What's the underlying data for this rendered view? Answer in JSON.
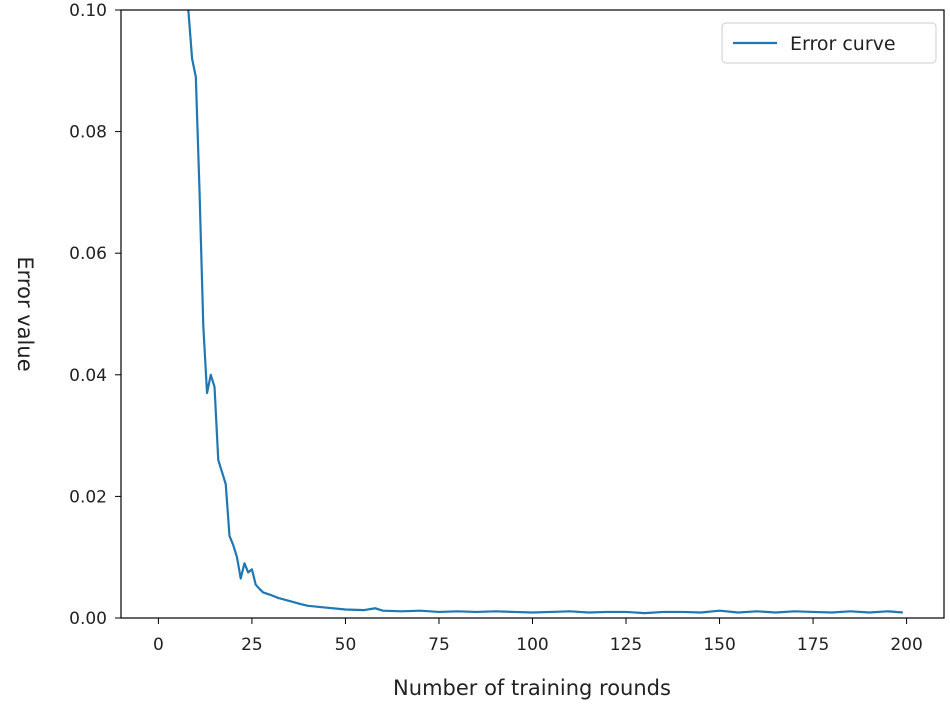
{
  "chart_data": {
    "type": "line",
    "title": "",
    "xlabel": "Number of training rounds",
    "ylabel": "Error value",
    "xlim": [
      -10,
      210
    ],
    "ylim": [
      0,
      0.1
    ],
    "x_ticks": [
      0,
      25,
      50,
      75,
      100,
      125,
      150,
      175,
      200
    ],
    "x_tick_labels": [
      "0",
      "25",
      "50",
      "75",
      "100",
      "125",
      "150",
      "175",
      "200"
    ],
    "y_ticks": [
      0,
      0.02,
      0.04,
      0.06,
      0.08,
      0.1
    ],
    "y_tick_labels": [
      "0.00",
      "0.02",
      "0.04",
      "0.06",
      "0.08",
      "0.10"
    ],
    "legend_position": "top-right",
    "grid": false,
    "series": [
      {
        "name": "Error curve",
        "color": "#1f77b4",
        "x": [
          8,
          9,
          10,
          11,
          12,
          13,
          14,
          15,
          16,
          17,
          18,
          19,
          20,
          21,
          22,
          23,
          24,
          25,
          26,
          27,
          28,
          30,
          32,
          35,
          38,
          40,
          45,
          50,
          55,
          58,
          60,
          65,
          70,
          75,
          80,
          85,
          90,
          95,
          100,
          105,
          110,
          115,
          120,
          125,
          130,
          135,
          140,
          145,
          150,
          155,
          160,
          165,
          170,
          175,
          180,
          185,
          190,
          195,
          199
        ],
        "y": [
          0.1,
          0.092,
          0.089,
          0.07,
          0.048,
          0.037,
          0.04,
          0.038,
          0.026,
          0.024,
          0.022,
          0.0135,
          0.012,
          0.01,
          0.0065,
          0.009,
          0.0075,
          0.008,
          0.0055,
          0.0048,
          0.0042,
          0.0038,
          0.0033,
          0.0028,
          0.0023,
          0.002,
          0.0017,
          0.0014,
          0.0013,
          0.0016,
          0.0012,
          0.0011,
          0.0012,
          0.001,
          0.0011,
          0.001,
          0.0011,
          0.001,
          0.0009,
          0.001,
          0.0011,
          0.0009,
          0.001,
          0.001,
          0.0008,
          0.001,
          0.001,
          0.0009,
          0.0012,
          0.0009,
          0.0011,
          0.0009,
          0.0011,
          0.001,
          0.0009,
          0.0011,
          0.0009,
          0.0011,
          0.0009
        ]
      }
    ]
  }
}
